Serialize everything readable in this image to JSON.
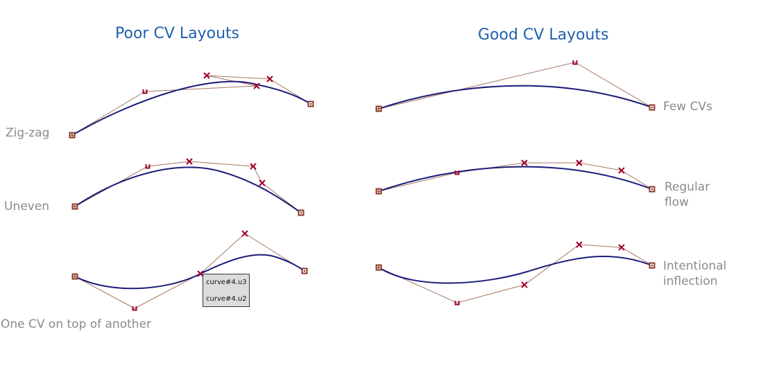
{
  "titles": {
    "poor": "Poor CV Layouts",
    "good": "Good CV Layouts"
  },
  "labels": {
    "zigzag": "Zig-zag",
    "uneven": "Uneven",
    "on_top": "One CV on top of another",
    "few": "Few CVs",
    "regular_1": "Regular",
    "regular_2": "flow",
    "inflection_1": "Intentional",
    "inflection_2": "inflection"
  },
  "tooltip": {
    "line1": "curve#4.u3",
    "line2": "curve#4.u2"
  },
  "colors": {
    "title": "#1f5fae",
    "label": "#8a8a8a",
    "curve": "#1a1a7a",
    "hull": "#a77460",
    "cv": "#a0002a"
  }
}
